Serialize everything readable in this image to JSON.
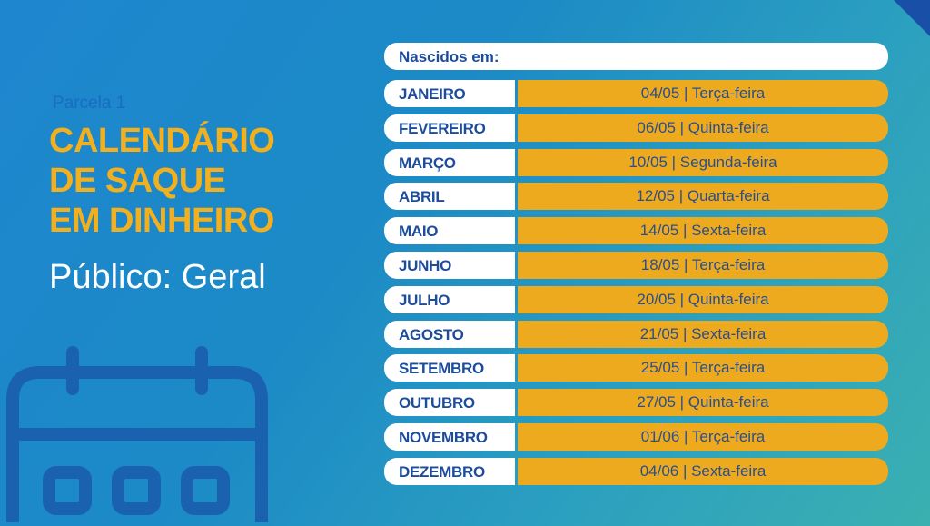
{
  "left": {
    "subtitle": "Parcela 1",
    "title_lines": [
      "CALENDÁRIO",
      "DE SAQUE",
      "EM DINHEIRO"
    ],
    "audience": "Público: Geral",
    "icon": "calendar-icon"
  },
  "table": {
    "header": "Nascidos em:",
    "rows": [
      {
        "month": "JANEIRO",
        "date": "04/05 | Terça-feira"
      },
      {
        "month": "FEVEREIRO",
        "date": "06/05 | Quinta-feira"
      },
      {
        "month": "MARÇO",
        "date": "10/05 | Segunda-feira"
      },
      {
        "month": "ABRIL",
        "date": "12/05 | Quarta-feira"
      },
      {
        "month": "MAIO",
        "date": "14/05 | Sexta-feira"
      },
      {
        "month": "JUNHO",
        "date": "18/05 | Terça-feira"
      },
      {
        "month": "JULHO",
        "date": "20/05 | Quinta-feira"
      },
      {
        "month": "AGOSTO",
        "date": "21/05 | Sexta-feira"
      },
      {
        "month": "SETEMBRO",
        "date": "25/05 | Terça-feira"
      },
      {
        "month": "OUTUBRO",
        "date": "27/05 | Quinta-feira"
      },
      {
        "month": "NOVEMBRO",
        "date": "01/06 | Terça-feira"
      },
      {
        "month": "DEZEMBRO",
        "date": "04/06 | Sexta-feira"
      }
    ]
  },
  "colors": {
    "accent": "#f2b01e",
    "navy": "#1d4c9c",
    "date_cell": "#eeaa1e"
  }
}
